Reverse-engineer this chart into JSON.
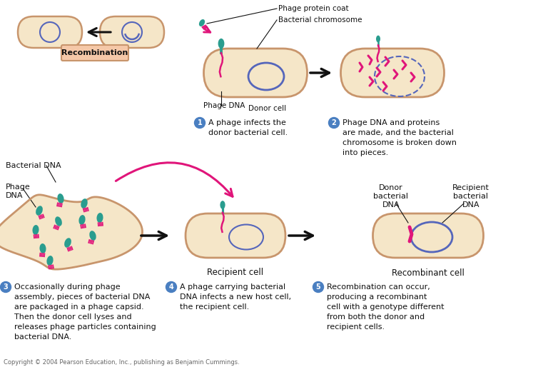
{
  "bg_color": "#ffffff",
  "cell_fill": "#f5e6c8",
  "cell_edge": "#c8956c",
  "nucleus_edge": "#5566bb",
  "phage_teal": "#2a9d8f",
  "phage_pink": "#e0157a",
  "dna_pink": "#e0157a",
  "arrow_color": "#111111",
  "step_circle_color": "#4a7fc1",
  "recomb_box_fill": "#f5c8a8",
  "recomb_box_edge": "#c8956c",
  "text_color": "#111111",
  "copyright": "Copyright © 2004 Pearson Education, Inc., publishing as Benjamin Cummings.",
  "step1_text": "A phage infects the\ndonor bacterial cell.",
  "step2_text": "Phage DNA and proteins\nare made, and the bacterial\nchromosome is broken down\ninto pieces.",
  "step3_text": "Occasionally during phage\nassembly, pieces of bacterial DNA\nare packaged in a phage capsid.\nThen the donor cell lyses and\nreleases phage particles containing\nbacterial DNA.",
  "step4_text": "A phage carrying bacterial\nDNA infects a new host cell,\nthe recipient cell.",
  "step5_text": "Recombination can occur,\nproducing a recombinant\ncell with a genotype different\nfrom both the donor and\nrecipient cells."
}
